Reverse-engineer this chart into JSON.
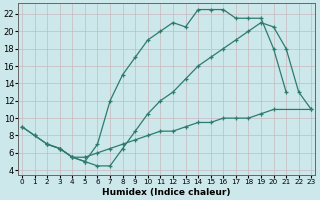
{
  "xlabel": "Humidex (Indice chaleur)",
  "bg_color": "#cce8ea",
  "grid_color": "#b8d8da",
  "line_color": "#2d7b6f",
  "xlim": [
    -0.3,
    23.3
  ],
  "ylim": [
    3.5,
    23.2
  ],
  "xticks": [
    0,
    1,
    2,
    3,
    4,
    5,
    6,
    7,
    8,
    9,
    10,
    11,
    12,
    13,
    14,
    15,
    16,
    17,
    18,
    19,
    20,
    21,
    22,
    23
  ],
  "yticks": [
    4,
    6,
    8,
    10,
    12,
    14,
    16,
    18,
    20,
    22
  ],
  "line1_x": [
    0,
    1,
    2,
    3,
    4,
    5,
    6,
    7,
    8,
    9,
    10,
    11,
    12,
    13,
    14,
    15,
    16,
    17,
    18,
    19,
    20,
    21
  ],
  "line1_y": [
    9,
    8,
    7,
    6.5,
    5.5,
    5.0,
    7.0,
    12,
    15,
    17,
    19,
    20,
    21,
    20.5,
    22.5,
    22.5,
    22.5,
    21.5,
    21.5,
    21.5,
    18,
    13
  ],
  "line2_x": [
    0,
    1,
    2,
    3,
    4,
    5,
    6,
    7,
    8,
    9,
    10,
    11,
    12,
    13,
    14,
    15,
    16,
    17,
    18,
    19,
    20,
    21,
    22,
    23
  ],
  "line2_y": [
    9,
    8,
    7,
    6.5,
    5.5,
    5.0,
    4.5,
    4.5,
    6.5,
    8.5,
    10.5,
    12,
    13,
    14.5,
    16,
    17,
    18,
    19,
    20,
    21,
    20.5,
    18,
    13,
    11
  ],
  "line3_x": [
    2,
    3,
    4,
    5,
    6,
    7,
    8,
    9,
    10,
    11,
    12,
    13,
    14,
    15,
    16,
    17,
    18,
    19,
    20,
    23
  ],
  "line3_y": [
    7.0,
    6.5,
    5.5,
    5.5,
    6.0,
    6.5,
    7.0,
    7.5,
    8.0,
    8.5,
    8.5,
    9.0,
    9.5,
    9.5,
    10,
    10,
    10,
    10.5,
    11,
    11
  ]
}
